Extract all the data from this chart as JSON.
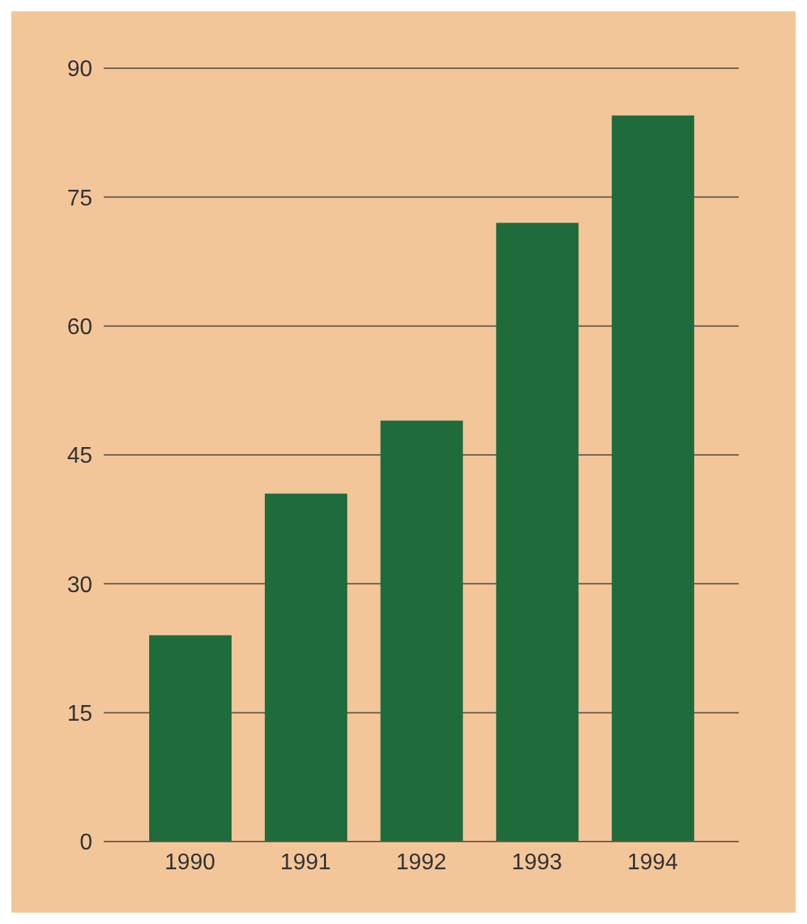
{
  "chart_data": {
    "type": "bar",
    "categories": [
      "1990",
      "1991",
      "1992",
      "1993",
      "1994"
    ],
    "values": [
      24,
      40.5,
      49,
      72,
      84.5
    ],
    "color": "#1e6b3c",
    "ylim": [
      0,
      90
    ],
    "yticks": [
      0,
      15,
      30,
      45,
      60,
      75,
      90
    ],
    "grid": "y"
  }
}
